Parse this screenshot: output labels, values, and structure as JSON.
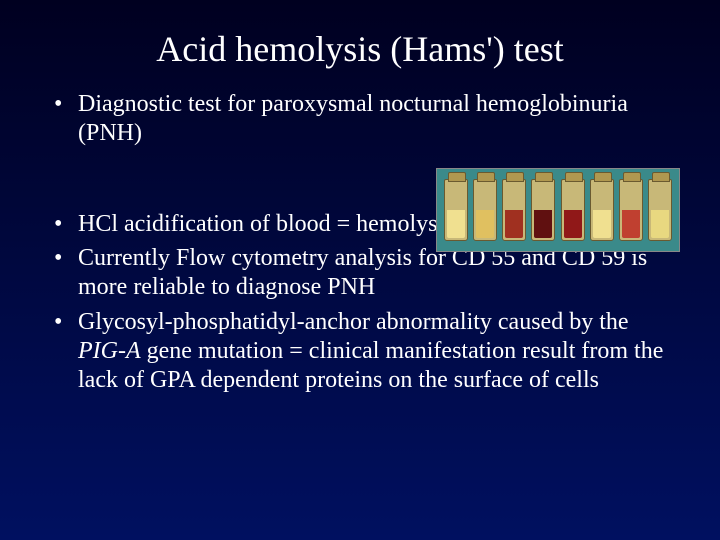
{
  "title": "Acid hemolysis (Hams') test",
  "bullets": {
    "b1": "Diagnostic test for paroxysmal nocturnal hemoglobinuria  (PNH)",
    "b2": "HCl acidification of blood = hemolysis when PNH",
    "b3": "Currently Flow cytometry analysis for CD 55 and CD 59 is more reliable to diagnose PNH",
    "b4_pre": "Glycosyl-phosphatidyl-anchor abnormality caused by the ",
    "b4_italic": "PIG-A",
    "b4_post": "  gene mutation = clinical manifestation result from the lack of GPA dependent proteins on the surface of cells"
  },
  "photo": {
    "background": "#3a8a8a",
    "jar_colors": [
      "#f0e090",
      "#e0c060",
      "#a03020",
      "#601010",
      "#901818",
      "#f0e090",
      "#c04030",
      "#e8d880"
    ]
  }
}
